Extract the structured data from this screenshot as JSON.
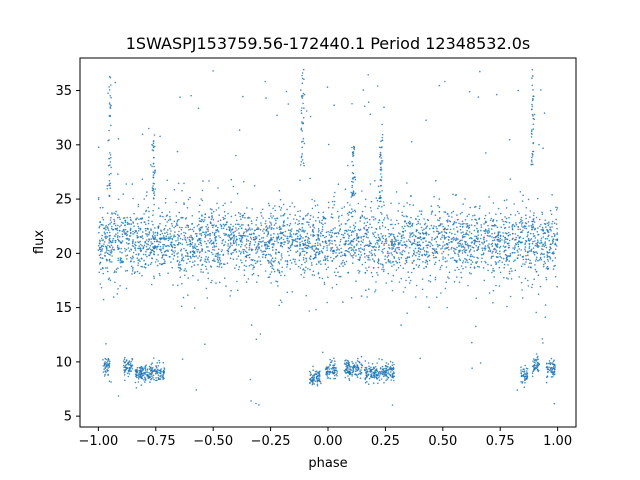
{
  "chart_data": {
    "type": "scatter",
    "title": "1SWASPJ153759.56-172440.1 Period 12348532.0s",
    "xlabel": "phase",
    "ylabel": "flux",
    "xlim": [
      -1.08,
      1.08
    ],
    "ylim": [
      4.0,
      38.0
    ],
    "x_ticks": [
      -1.0,
      -0.75,
      -0.5,
      -0.25,
      0.0,
      0.25,
      0.5,
      0.75,
      1.0
    ],
    "x_tick_labels": [
      "−1.00",
      "−0.75",
      "−0.50",
      "−0.25",
      "0.00",
      "0.25",
      "0.50",
      "0.75",
      "1.00"
    ],
    "y_ticks": [
      5,
      10,
      15,
      20,
      25,
      30,
      35
    ],
    "y_tick_labels": [
      "5",
      "10",
      "15",
      "20",
      "25",
      "30",
      "35"
    ],
    "grid": false,
    "legend": "none",
    "marker_color": "#1f77b4",
    "phase_range": [
      -1.0,
      1.0
    ],
    "baseline": {
      "center": 21.0,
      "band": [
        18.5,
        24.0
      ],
      "scatter_range": [
        15.0,
        27.0
      ]
    },
    "low_flux_groups": [
      {
        "x": [
          -0.98,
          -0.95
        ],
        "y": 9.6
      },
      {
        "x": [
          -0.89,
          -0.85
        ],
        "y": 9.6
      },
      {
        "x": [
          -0.84,
          -0.71
        ],
        "y": 9.0
      },
      {
        "x": [
          -0.08,
          -0.03
        ],
        "y": 8.5
      },
      {
        "x": [
          -0.01,
          0.04
        ],
        "y": 9.3
      },
      {
        "x": [
          0.07,
          0.15
        ],
        "y": 9.4
      },
      {
        "x": [
          0.16,
          0.29
        ],
        "y": 9.0
      },
      {
        "x": [
          0.84,
          0.87
        ],
        "y": 8.8
      },
      {
        "x": [
          0.89,
          0.92
        ],
        "y": 9.6
      },
      {
        "x": [
          0.95,
          0.99
        ],
        "y": 9.3
      }
    ],
    "high_flux_spikes": [
      {
        "x": -0.11,
        "y": [
          28.0,
          37.0
        ]
      },
      {
        "x": 0.89,
        "y": [
          28.0,
          37.0
        ]
      },
      {
        "x": -0.95,
        "y": [
          25.0,
          37.0
        ]
      },
      {
        "x": -0.76,
        "y": [
          25.0,
          31.0
        ]
      },
      {
        "x": 0.23,
        "y": [
          25.0,
          31.0
        ]
      },
      {
        "x": 0.11,
        "y": [
          25.0,
          30.0
        ]
      }
    ]
  }
}
